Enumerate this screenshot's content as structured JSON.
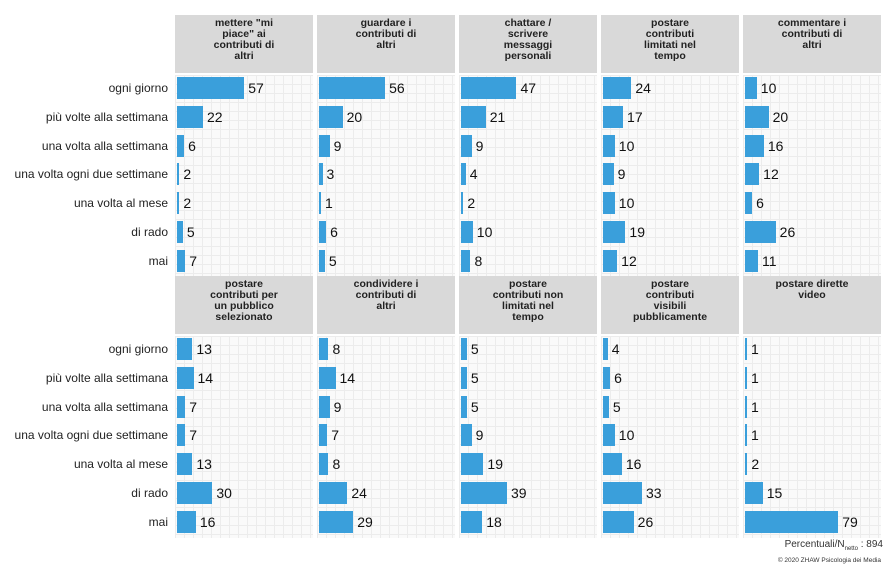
{
  "chart_data": {
    "type": "bar",
    "categories": [
      "ogni giorno",
      "più volte alla settimana",
      "una volta alla settimana",
      "una volta ogni due settimane",
      "una volta al mese",
      "di rado",
      "mai"
    ],
    "xlim": [
      0,
      80
    ],
    "panels": [
      {
        "title": "mettere \"mi piace\" ai contributi di altri",
        "values": [
          57,
          22,
          6,
          2,
          2,
          5,
          7
        ]
      },
      {
        "title": "guardare i contributi di altri",
        "values": [
          56,
          20,
          9,
          3,
          1,
          6,
          5
        ]
      },
      {
        "title": "chattare / scrivere messaggi personali",
        "values": [
          47,
          21,
          9,
          4,
          2,
          10,
          8
        ]
      },
      {
        "title": "postare contributi limitati nel tempo",
        "values": [
          24,
          17,
          10,
          9,
          10,
          19,
          12
        ]
      },
      {
        "title": "commentare i contributi di altri",
        "values": [
          10,
          20,
          16,
          12,
          6,
          26,
          11
        ]
      },
      {
        "title": "postare contributi per un pubblico selezionato",
        "values": [
          13,
          14,
          7,
          7,
          13,
          30,
          16
        ]
      },
      {
        "title": "condividere i contributi di altri",
        "values": [
          8,
          14,
          9,
          7,
          8,
          24,
          29
        ]
      },
      {
        "title": "postare contributi non limitati nel tempo",
        "values": [
          5,
          5,
          5,
          9,
          19,
          39,
          18
        ]
      },
      {
        "title": "postare contributi visibili pubblicamente",
        "values": [
          4,
          6,
          5,
          10,
          16,
          33,
          26
        ]
      },
      {
        "title": "postare dirette video",
        "values": [
          1,
          1,
          1,
          1,
          2,
          15,
          79
        ]
      }
    ],
    "bar_color": "#3a9fdb",
    "grid": true
  },
  "footer": {
    "note_prefix": "Percentuali/N",
    "note_sub": "netto",
    "note_suffix": ": 894",
    "copyright": "© 2020 ZHAW Psicologia dei Media"
  }
}
